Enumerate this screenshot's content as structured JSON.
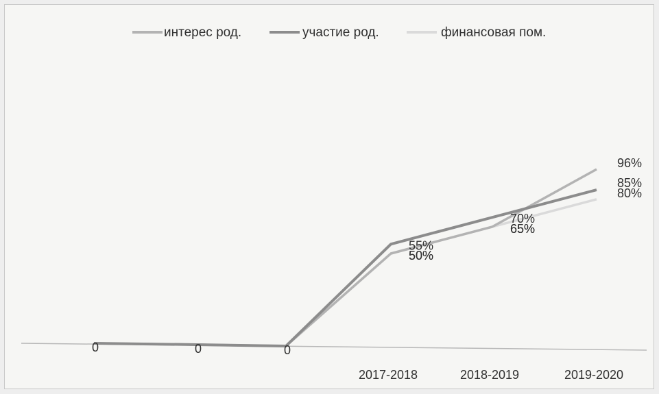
{
  "chart_data": {
    "type": "line",
    "categories": [
      "",
      "",
      "",
      "2017-2018",
      "2018-2019",
      "2019-2020"
    ],
    "series": [
      {
        "name": "интерес род.",
        "color": "#b3b3b3",
        "values": [
          0,
          0,
          0,
          50,
          65,
          96
        ],
        "labels": [
          "0",
          "0",
          "0",
          "50%",
          "65%",
          "96%"
        ]
      },
      {
        "name": "участие род.",
        "color": "#8c8c8c",
        "values": [
          0,
          0,
          0,
          55,
          70,
          85
        ],
        "labels": [
          "",
          "",
          "",
          "55%",
          "70%",
          "85%"
        ]
      },
      {
        "name": "финансовая пом.",
        "color": "#dadada",
        "values": [
          0,
          0,
          0,
          50,
          65,
          80
        ],
        "labels": [
          "",
          "",
          "",
          "50%",
          "65%",
          "80%"
        ]
      }
    ],
    "legend_position": "top-center",
    "grid": false
  }
}
